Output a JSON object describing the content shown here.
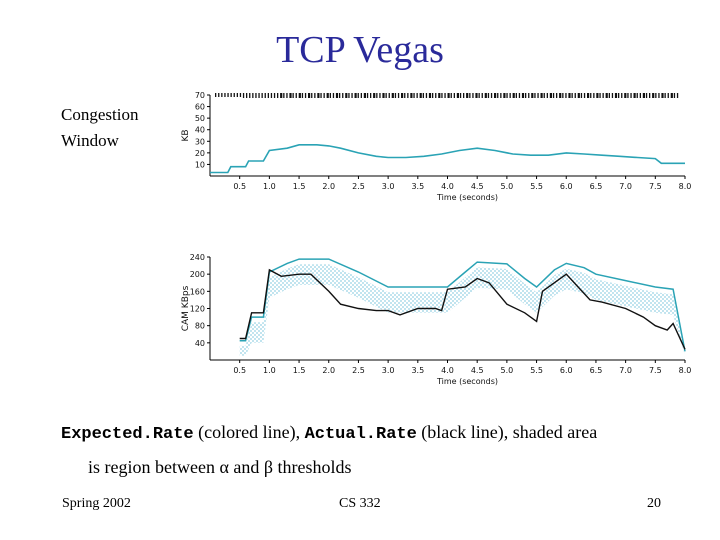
{
  "slide": {
    "title": "TCP Vegas",
    "side_label_line1": "Congestion",
    "side_label_line2": "Window",
    "caption": {
      "expected": "Expected.Rate",
      "text1": " (colored line), ",
      "actual": "Actual.Rate",
      "text2": " (black line), shaded area",
      "line2": "is region between α and β thresholds"
    },
    "footer": {
      "left": "Spring 2002",
      "center": "CS 332",
      "right": "20"
    }
  },
  "colors": {
    "colored_line": "#2aa3b5",
    "shade": "#aedcea",
    "actual_line": "#111111",
    "title": "#2a2a9a"
  },
  "chart_data": [
    {
      "type": "line",
      "title": "",
      "xlabel": "Time (seconds)",
      "ylabel": "KB",
      "xlim": [
        0,
        8.0
      ],
      "ylim": [
        0,
        70
      ],
      "x_ticks": [
        "0.5",
        "1.0",
        "1.5",
        "2.0",
        "2.5",
        "3.0",
        "3.5",
        "4.0",
        "4.5",
        "5.0",
        "5.5",
        "6.0",
        "6.5",
        "7.0",
        "7.5",
        "8.0"
      ],
      "y_ticks": [
        "10",
        "20",
        "30",
        "40",
        "50",
        "60",
        "70"
      ],
      "series": [
        {
          "name": "Congestion Window",
          "x": [
            0,
            0.3,
            0.35,
            0.6,
            0.65,
            0.9,
            1.0,
            1.3,
            1.5,
            1.8,
            2.0,
            2.2,
            2.5,
            2.8,
            3.0,
            3.3,
            3.6,
            3.9,
            4.2,
            4.5,
            4.8,
            5.1,
            5.4,
            5.7,
            6.0,
            6.3,
            6.6,
            6.9,
            7.2,
            7.5,
            7.6,
            8.0
          ],
          "y": [
            3,
            3,
            8,
            8,
            13,
            13,
            22,
            24,
            27,
            27,
            26,
            24,
            20,
            17,
            16,
            16,
            17,
            19,
            22,
            24,
            22,
            19,
            18,
            18,
            20,
            19,
            18,
            17,
            16,
            15,
            11,
            11
          ]
        }
      ],
      "marker_row": "dense tick marks at 70 KB across the top"
    },
    {
      "type": "line",
      "title": "",
      "xlabel": "Time (seconds)",
      "ylabel": "CAM KBps",
      "xlim": [
        0,
        8.0
      ],
      "ylim": [
        0,
        240
      ],
      "x_ticks": [
        "0.5",
        "1.0",
        "1.5",
        "2.0",
        "2.5",
        "3.0",
        "3.5",
        "4.0",
        "4.5",
        "5.0",
        "5.5",
        "6.0",
        "6.5",
        "7.0",
        "7.5",
        "8.0"
      ],
      "y_ticks": [
        "40",
        "80",
        "120",
        "160",
        "200",
        "240"
      ],
      "series": [
        {
          "name": "Expected.Rate",
          "x": [
            0.5,
            0.6,
            0.7,
            0.8,
            0.9,
            1.0,
            1.3,
            1.5,
            2.0,
            2.5,
            3.0,
            3.5,
            4.0,
            4.3,
            4.5,
            5.0,
            5.3,
            5.5,
            5.8,
            6.0,
            6.3,
            6.5,
            7.0,
            7.5,
            7.8,
            8.0
          ],
          "y": [
            45,
            45,
            100,
            100,
            100,
            205,
            225,
            235,
            235,
            205,
            170,
            170,
            170,
            205,
            228,
            224,
            190,
            170,
            210,
            225,
            215,
            200,
            185,
            170,
            165,
            20
          ]
        },
        {
          "name": "Actual.Rate",
          "x": [
            0.5,
            0.6,
            0.7,
            0.8,
            0.9,
            1.0,
            1.2,
            1.5,
            1.7,
            2.0,
            2.2,
            2.5,
            2.8,
            3.0,
            3.2,
            3.5,
            3.8,
            3.9,
            4.0,
            4.3,
            4.5,
            4.7,
            5.0,
            5.3,
            5.5,
            5.6,
            6.0,
            6.2,
            6.4,
            6.6,
            7.0,
            7.3,
            7.5,
            7.7,
            7.8,
            8.0
          ],
          "y": [
            50,
            50,
            110,
            110,
            110,
            210,
            195,
            200,
            200,
            160,
            130,
            120,
            115,
            115,
            105,
            120,
            120,
            115,
            165,
            170,
            190,
            180,
            130,
            110,
            90,
            160,
            200,
            170,
            140,
            135,
            120,
            100,
            80,
            70,
            85,
            25
          ]
        }
      ],
      "shaded_area": "region between alpha and beta thresholds"
    }
  ]
}
